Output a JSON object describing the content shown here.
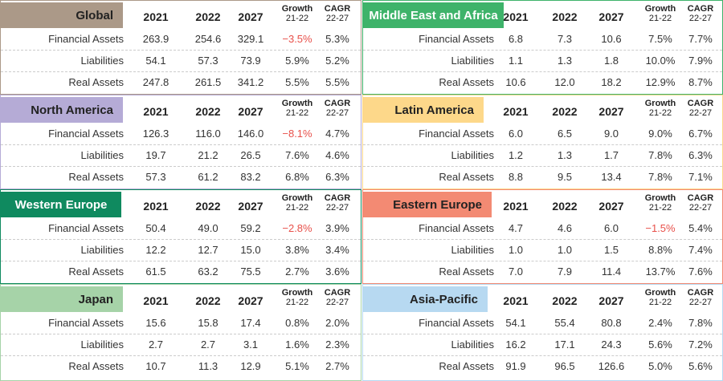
{
  "columns": {
    "y1": "2021",
    "y2": "2022",
    "y3": "2027",
    "growth": "Growth",
    "growth_sub": "21-22",
    "cagr": "CAGR",
    "cagr_sub": "22-27"
  },
  "colors": {
    "border_default": "#cccccc",
    "negative": "#e8504a"
  },
  "chart_data": [
    {
      "type": "table",
      "title": "Global",
      "color": "#ab9988",
      "title_dark": false,
      "rows": [
        {
          "label": "Financial Assets",
          "v2021": "263.9",
          "v2022": "254.6",
          "v2027": "329.1",
          "growth": "−3.5%",
          "cagr": "5.3%",
          "neg": true
        },
        {
          "label": "Liabilities",
          "v2021": "54.1",
          "v2022": "57.3",
          "v2027": "73.9",
          "growth": "5.9%",
          "cagr": "5.2%",
          "neg": false
        },
        {
          "label": "Real Assets",
          "v2021": "247.8",
          "v2022": "261.5",
          "v2027": "341.2",
          "growth": "5.5%",
          "cagr": "5.5%",
          "neg": false
        }
      ]
    },
    {
      "type": "table",
      "title": "Middle East and Africa",
      "color": "#3eb36a",
      "title_dark": true,
      "rows": [
        {
          "label": "Financial Assets",
          "v2021": "6.8",
          "v2022": "7.3",
          "v2027": "10.6",
          "growth": "7.5%",
          "cagr": "7.7%",
          "neg": false
        },
        {
          "label": "Liabilities",
          "v2021": "1.1",
          "v2022": "1.3",
          "v2027": "1.8",
          "growth": "10.0%",
          "cagr": "7.9%",
          "neg": false
        },
        {
          "label": "Real Assets",
          "v2021": "10.6",
          "v2022": "12.0",
          "v2027": "18.2",
          "growth": "12.9%",
          "cagr": "8.7%",
          "neg": false
        }
      ]
    },
    {
      "type": "table",
      "title": "North America",
      "color": "#b5abd6",
      "title_dark": false,
      "rows": [
        {
          "label": "Financial Assets",
          "v2021": "126.3",
          "v2022": "116.0",
          "v2027": "146.0",
          "growth": "−8.1%",
          "cagr": "4.7%",
          "neg": true
        },
        {
          "label": "Liabilities",
          "v2021": "19.7",
          "v2022": "21.2",
          "v2027": "26.5",
          "growth": "7.6%",
          "cagr": "4.6%",
          "neg": false
        },
        {
          "label": "Real Assets",
          "v2021": "57.3",
          "v2022": "61.2",
          "v2027": "83.2",
          "growth": "6.8%",
          "cagr": "6.3%",
          "neg": false
        }
      ]
    },
    {
      "type": "table",
      "title": "Latin America",
      "color": "#fdd88a",
      "title_dark": false,
      "rows": [
        {
          "label": "Financial Assets",
          "v2021": "6.0",
          "v2022": "6.5",
          "v2027": "9.0",
          "growth": "9.0%",
          "cagr": "6.7%",
          "neg": false
        },
        {
          "label": "Liabilities",
          "v2021": "1.2",
          "v2022": "1.3",
          "v2027": "1.7",
          "growth": "7.8%",
          "cagr": "6.3%",
          "neg": false
        },
        {
          "label": "Real Assets",
          "v2021": "8.8",
          "v2022": "9.5",
          "v2027": "13.4",
          "growth": "7.8%",
          "cagr": "7.1%",
          "neg": false
        }
      ]
    },
    {
      "type": "table",
      "title": "Western Europe",
      "color": "#0f8a5f",
      "title_dark": true,
      "rows": [
        {
          "label": "Financial Assets",
          "v2021": "50.4",
          "v2022": "49.0",
          "v2027": "59.2",
          "growth": "−2.8%",
          "cagr": "3.9%",
          "neg": true
        },
        {
          "label": "Liabilities",
          "v2021": "12.2",
          "v2022": "12.7",
          "v2027": "15.0",
          "growth": "3.8%",
          "cagr": "3.4%",
          "neg": false
        },
        {
          "label": "Real Assets",
          "v2021": "61.5",
          "v2022": "63.2",
          "v2027": "75.5",
          "growth": "2.7%",
          "cagr": "3.6%",
          "neg": false
        }
      ]
    },
    {
      "type": "table",
      "title": "Eastern Europe",
      "color": "#f38a73",
      "title_dark": false,
      "rows": [
        {
          "label": "Financial Assets",
          "v2021": "4.7",
          "v2022": "4.6",
          "v2027": "6.0",
          "growth": "−1.5%",
          "cagr": "5.4%",
          "neg": true
        },
        {
          "label": "Liabilities",
          "v2021": "1.0",
          "v2022": "1.0",
          "v2027": "1.5",
          "growth": "8.8%",
          "cagr": "7.4%",
          "neg": false
        },
        {
          "label": "Real Assets",
          "v2021": "7.0",
          "v2022": "7.9",
          "v2027": "11.4",
          "growth": "13.7%",
          "cagr": "7.6%",
          "neg": false
        }
      ]
    },
    {
      "type": "table",
      "title": "Japan",
      "color": "#a6d3a8",
      "title_dark": false,
      "rows": [
        {
          "label": "Financial Assets",
          "v2021": "15.6",
          "v2022": "15.8",
          "v2027": "17.4",
          "growth": "0.8%",
          "cagr": "2.0%",
          "neg": false
        },
        {
          "label": "Liabilities",
          "v2021": "2.7",
          "v2022": "2.7",
          "v2027": "3.1",
          "growth": "1.6%",
          "cagr": "2.3%",
          "neg": false
        },
        {
          "label": "Real Assets",
          "v2021": "10.7",
          "v2022": "11.3",
          "v2027": "12.9",
          "growth": "5.1%",
          "cagr": "2.7%",
          "neg": false
        }
      ]
    },
    {
      "type": "table",
      "title": "Asia-Pacific",
      "color": "#b7d9f1",
      "title_dark": false,
      "rows": [
        {
          "label": "Financial Assets",
          "v2021": "54.1",
          "v2022": "55.4",
          "v2027": "80.8",
          "growth": "2.4%",
          "cagr": "7.8%",
          "neg": false
        },
        {
          "label": "Liabilities",
          "v2021": "16.2",
          "v2022": "17.1",
          "v2027": "24.3",
          "growth": "5.6%",
          "cagr": "7.2%",
          "neg": false
        },
        {
          "label": "Real Assets",
          "v2021": "91.9",
          "v2022": "96.5",
          "v2027": "126.6",
          "growth": "5.0%",
          "cagr": "5.6%",
          "neg": false
        }
      ]
    }
  ]
}
